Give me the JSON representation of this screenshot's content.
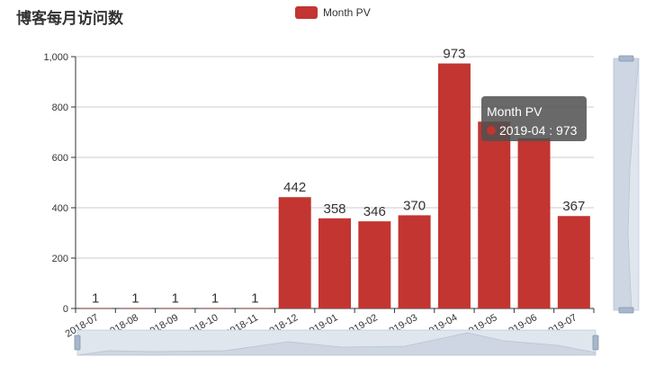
{
  "chart_data": {
    "type": "bar",
    "title": "博客每月访问数",
    "categories": [
      "2018-07",
      "2018-08",
      "2018-09",
      "2018-10",
      "2018-11",
      "2018-12",
      "2019-01",
      "2019-02",
      "2019-03",
      "2019-04",
      "2019-05",
      "2019-06",
      "2019-07"
    ],
    "series": [
      {
        "name": "Month PV",
        "values": [
          1,
          1,
          1,
          1,
          1,
          442,
          358,
          346,
          370,
          973,
          742,
          676,
          367
        ]
      }
    ],
    "data_labels": [
      "1",
      "1",
      "1",
      "1",
      "1",
      "442",
      "358",
      "346",
      "370",
      "973",
      "",
      "",
      "367"
    ],
    "ylim": [
      0,
      1000
    ],
    "yticks": [
      "0",
      "200",
      "400",
      "600",
      "800",
      "1,000"
    ],
    "grid": true,
    "legend": "top-center",
    "tooltip": {
      "title": "Month PV",
      "text": "2019-04 : 973"
    },
    "colors": {
      "bar": "#c23531",
      "grid": "#cccccc",
      "axis": "#333333",
      "zoom": "#d2dbee"
    }
  }
}
